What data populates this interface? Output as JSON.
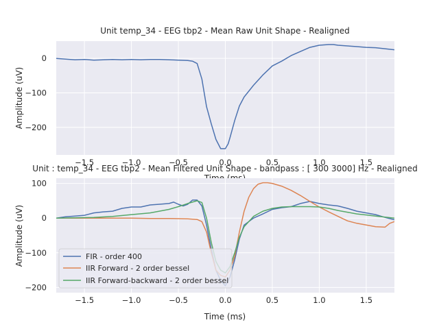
{
  "chart_data": [
    {
      "type": "line",
      "title": "Unit temp_34 - EEG tbp2 - Mean Raw Unit Shape - Realigned",
      "xlabel": "Time (ms)",
      "ylabel": "Amplitude (uV)",
      "xlim": [
        -1.8,
        1.8
      ],
      "ylim": [
        -280,
        50
      ],
      "grid": true,
      "xticks": [
        -1.5,
        -1.0,
        -0.5,
        0.0,
        0.5,
        1.0,
        1.5
      ],
      "xtick_labels": [
        "−1.5",
        "−1.0",
        "−0.5",
        "0.0",
        "0.5",
        "1.0",
        "1.5"
      ],
      "yticks": [
        0,
        -100,
        -200
      ],
      "ytick_labels": [
        "0",
        "−100",
        "−200"
      ],
      "series": [
        {
          "color": "#4c72b0",
          "x": [
            -1.8,
            -1.7,
            -1.6,
            -1.5,
            -1.4,
            -1.3,
            -1.2,
            -1.1,
            -1.0,
            -0.9,
            -0.8,
            -0.7,
            -0.6,
            -0.5,
            -0.4,
            -0.35,
            -0.3,
            -0.25,
            -0.2,
            -0.15,
            -0.1,
            -0.05,
            0.0,
            0.03,
            0.05,
            0.1,
            0.15,
            0.2,
            0.3,
            0.4,
            0.5,
            0.6,
            0.7,
            0.8,
            0.9,
            1.0,
            1.1,
            1.15,
            1.2,
            1.3,
            1.4,
            1.5,
            1.6,
            1.7,
            1.8
          ],
          "y": [
            0,
            -2,
            -4,
            -3,
            -5,
            -4,
            -3,
            -4,
            -3,
            -4,
            -3,
            -3,
            -4,
            -5,
            -6,
            -8,
            -15,
            -60,
            -140,
            -190,
            -235,
            -262,
            -262,
            -248,
            -230,
            -180,
            -138,
            -112,
            -78,
            -48,
            -22,
            -8,
            8,
            20,
            32,
            38,
            40,
            40,
            38,
            36,
            34,
            32,
            31,
            28,
            25
          ]
        }
      ]
    },
    {
      "type": "line",
      "title": "Unit : temp_34 - EEG tbp2 - Mean Filtered Unit Shape - bandpass : [ 300 3000] Hz - Realigned",
      "xlabel": "Time (ms)",
      "ylabel": "Amplitude (uV)",
      "xlim": [
        -1.8,
        1.8
      ],
      "ylim": [
        -215,
        115
      ],
      "grid": true,
      "xticks": [
        -1.5,
        -1.0,
        -0.5,
        0.0,
        0.5,
        1.0,
        1.5
      ],
      "xtick_labels": [
        "−1.5",
        "−1.0",
        "−0.5",
        "0.0",
        "0.5",
        "1.0",
        "1.5"
      ],
      "yticks": [
        100,
        0,
        -100,
        -200
      ],
      "ytick_labels": [
        "100",
        "0",
        "−100",
        "−200"
      ],
      "legend": {
        "placement": "lower-left",
        "entries": [
          {
            "label": "FIR - order 400",
            "color": "#4c72b0"
          },
          {
            "label": "IIR Forward - 2 order bessel",
            "color": "#dd8452"
          },
          {
            "label": "IIR Forward-backward - 2 order bessel",
            "color": "#55a868"
          }
        ]
      },
      "series": [
        {
          "name": "FIR - order 400",
          "color": "#4c72b0",
          "x": [
            -1.8,
            -1.7,
            -1.6,
            -1.5,
            -1.4,
            -1.3,
            -1.2,
            -1.1,
            -1.0,
            -0.9,
            -0.8,
            -0.7,
            -0.6,
            -0.55,
            -0.5,
            -0.45,
            -0.4,
            -0.35,
            -0.3,
            -0.25,
            -0.2,
            -0.15,
            -0.1,
            -0.05,
            0.0,
            0.05,
            0.1,
            0.15,
            0.2,
            0.3,
            0.4,
            0.5,
            0.6,
            0.7,
            0.8,
            0.9,
            1.0,
            1.1,
            1.2,
            1.3,
            1.4,
            1.5,
            1.6,
            1.7,
            1.8
          ],
          "y": [
            0,
            4,
            6,
            8,
            15,
            18,
            20,
            28,
            32,
            32,
            38,
            40,
            42,
            46,
            40,
            35,
            40,
            52,
            52,
            35,
            -20,
            -90,
            -150,
            -180,
            -195,
            -170,
            -120,
            -60,
            -20,
            0,
            12,
            25,
            30,
            33,
            42,
            48,
            42,
            38,
            35,
            28,
            20,
            15,
            10,
            2,
            -5
          ]
        },
        {
          "name": "IIR Forward - 2 order bessel",
          "color": "#dd8452",
          "x": [
            -1.8,
            -1.6,
            -1.4,
            -1.2,
            -1.0,
            -0.8,
            -0.6,
            -0.4,
            -0.3,
            -0.25,
            -0.2,
            -0.15,
            -0.1,
            -0.05,
            0.0,
            0.05,
            0.1,
            0.15,
            0.2,
            0.25,
            0.3,
            0.35,
            0.4,
            0.45,
            0.5,
            0.6,
            0.7,
            0.8,
            0.9,
            1.0,
            1.1,
            1.2,
            1.3,
            1.4,
            1.5,
            1.6,
            1.7,
            1.75,
            1.8
          ],
          "y": [
            0,
            0,
            0,
            0,
            0,
            -1,
            -1,
            -2,
            -4,
            -10,
            -40,
            -100,
            -150,
            -165,
            -170,
            -150,
            -110,
            -40,
            20,
            60,
            85,
            98,
            102,
            102,
            100,
            92,
            80,
            65,
            48,
            32,
            18,
            5,
            -8,
            -15,
            -20,
            -25,
            -26,
            -15,
            -10
          ]
        },
        {
          "name": "IIR Forward-backward - 2 order bessel",
          "color": "#55a868",
          "x": [
            -1.8,
            -1.6,
            -1.4,
            -1.2,
            -1.0,
            -0.8,
            -0.6,
            -0.5,
            -0.4,
            -0.3,
            -0.25,
            -0.2,
            -0.15,
            -0.1,
            -0.05,
            0.0,
            0.05,
            0.1,
            0.15,
            0.2,
            0.3,
            0.4,
            0.5,
            0.6,
            0.7,
            0.8,
            0.9,
            1.0,
            1.1,
            1.2,
            1.3,
            1.4,
            1.5,
            1.6,
            1.7,
            1.8
          ],
          "y": [
            0,
            1,
            2,
            5,
            10,
            15,
            25,
            33,
            42,
            50,
            45,
            0,
            -70,
            -125,
            -150,
            -158,
            -140,
            -100,
            -55,
            -25,
            5,
            20,
            28,
            32,
            33,
            33,
            33,
            32,
            28,
            22,
            17,
            12,
            9,
            6,
            3,
            0
          ]
        }
      ]
    }
  ]
}
